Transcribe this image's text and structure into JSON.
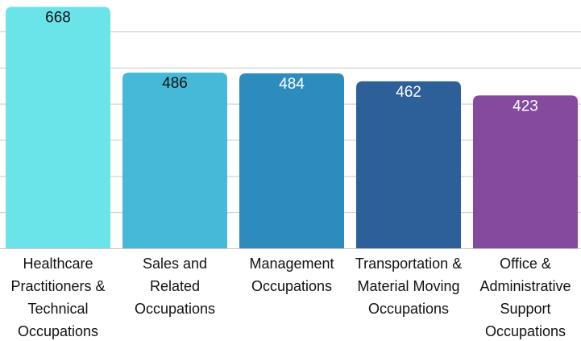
{
  "chart_data": {
    "type": "bar",
    "categories": [
      "Healthcare Practitioners & Technical Occupations",
      "Sales and Related Occupations",
      "Management Occupations",
      "Transportation & Material Moving Occupations",
      "Office & Administrative Support Occupations"
    ],
    "values": [
      668,
      486,
      484,
      462,
      423
    ],
    "colors": [
      "#6be4e9",
      "#45b9d7",
      "#2e8cbd",
      "#2d5f98",
      "#844a9e"
    ],
    "label_colors": [
      "#111111",
      "#111111",
      "#ffffff",
      "#ffffff",
      "#ffffff"
    ],
    "ylim": [
      0,
      687
    ],
    "yticks": [
      0,
      100,
      200,
      300,
      400,
      500,
      600
    ],
    "grid": true
  }
}
